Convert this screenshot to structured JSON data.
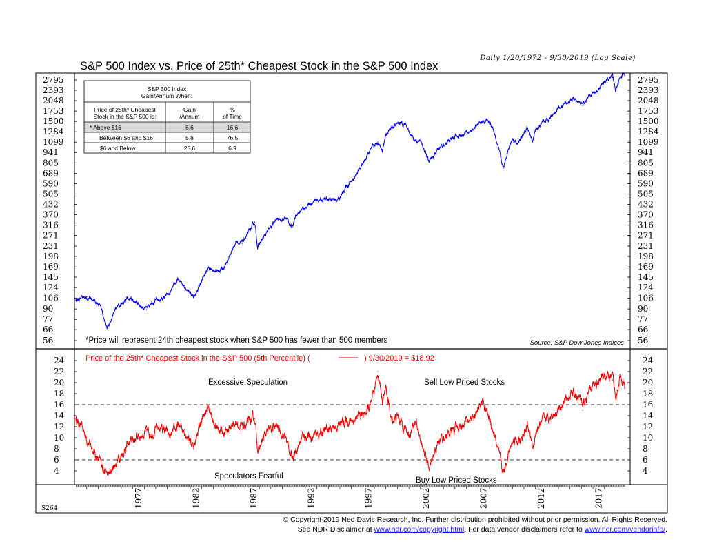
{
  "header": {
    "title": "S&P 500 Index vs. Price of 25th* Cheapest Stock in the S&P 500 Index",
    "subtitle": "Daily 1/20/1972 - 9/30/2019 (Log Scale)"
  },
  "chart_id": "S264",
  "footer": {
    "line1": "© Copyright 2019 Ned Davis Research, Inc.  Further distribution prohibited without prior permission.  All Rights Reserved.",
    "line2_prefix": "See NDR Disclaimer at ",
    "line2_link1": "www.ndr.com/copyright.html",
    "line2_middle": ". For data vendor disclaimers refer to ",
    "line2_link2": "www.ndr.com/vendorinfo/",
    "line2_suffix": "."
  },
  "stats_table": {
    "title_line1": "S&P 500 Index",
    "title_line2": "Gain/Annum When:",
    "col1_line1": "Price of 25th* Cheapest",
    "col1_line2": "Stock in the S&P 500 is:",
    "col2_line1": "Gain",
    "col2_line2": "/Annum",
    "col3_line1": "%",
    "col3_line2": "of Time",
    "rows": [
      {
        "label": "*  Above $16",
        "gain": "6.6",
        "pct": "16.6"
      },
      {
        "label": "Between $6 and  $16",
        "gain": "5.8",
        "pct": "76.5"
      },
      {
        "label": "$6 and Below",
        "gain": "25.6",
        "pct": "6.9"
      }
    ]
  },
  "colors": {
    "sp500_line": "#0000ee",
    "cheap_stock_line": "#ee0000",
    "highlight_row": "#d9d9d9"
  },
  "chart_data": [
    {
      "type": "line",
      "scale": "log",
      "y_ticks": [
        "2795",
        "2393",
        "2048",
        "1753",
        "1500",
        "1284",
        "1099",
        "941",
        "805",
        "689",
        "590",
        "505",
        "432",
        "370",
        "316",
        "271",
        "231",
        "198",
        "169",
        "145",
        "124",
        "106",
        "90",
        "77",
        "66",
        "56"
      ],
      "footnote": "*Price will represent 24th cheapest stock when S&P 500 has fewer than 500 members",
      "source": "Source: S&P Dow Jones Indices",
      "series": [
        {
          "name": "S&P 500 Index",
          "x": [
            1972.05,
            1973.0,
            1973.6,
            1974.3,
            1974.75,
            1974.95,
            1975.5,
            1976.5,
            1977.3,
            1978.2,
            1978.6,
            1979.3,
            1980.2,
            1980.9,
            1981.5,
            1982.3,
            1982.6,
            1983.5,
            1984.5,
            1985.0,
            1986.0,
            1986.5,
            1987.6,
            1987.85,
            1988.5,
            1989.5,
            1990.4,
            1990.8,
            1991.2,
            1992.0,
            1993.0,
            1994.0,
            1995.0,
            1995.5,
            1996.5,
            1997.5,
            1998.3,
            1998.7,
            1999.0,
            1999.5,
            2000.2,
            2000.7,
            2001.0,
            2001.7,
            2002.0,
            2002.75,
            2003.1,
            2003.5,
            2004.5,
            2005.5,
            2006.5,
            2007.2,
            2007.8,
            2008.3,
            2008.75,
            2008.95,
            2009.2,
            2009.5,
            2010.0,
            2010.5,
            2011.3,
            2011.75,
            2012.0,
            2013.0,
            2014.0,
            2015.4,
            2016.1,
            2016.5,
            2017.5,
            2018.0,
            2018.7,
            2018.95,
            2019.2,
            2019.5,
            2019.75
          ],
          "y": [
            103,
            108,
            104,
            90,
            67,
            70,
            92,
            105,
            100,
            89,
            101,
            103,
            112,
            139,
            128,
            108,
            118,
            165,
            160,
            170,
            250,
            240,
            330,
            230,
            270,
            345,
            350,
            305,
            375,
            415,
            460,
            465,
            470,
            560,
            680,
            930,
            1100,
            980,
            1220,
            1370,
            1480,
            1440,
            1300,
            1080,
            1150,
            820,
            860,
            990,
            1130,
            1220,
            1310,
            1480,
            1540,
            1380,
            1000,
            880,
            740,
            920,
            1150,
            1080,
            1350,
            1120,
            1300,
            1530,
            1850,
            2100,
            1900,
            2100,
            2450,
            2750,
            2900,
            2450,
            2750,
            2950,
            2980
          ]
        }
      ]
    },
    {
      "type": "line",
      "y_ticks": [
        24,
        22,
        20,
        18,
        16,
        14,
        12,
        10,
        8,
        6,
        4
      ],
      "reference_lines": [
        16,
        6
      ],
      "x_ticks": [
        "1977",
        "1982",
        "1987",
        "1992",
        "1997",
        "2002",
        "2007",
        "2012",
        "2017"
      ],
      "legend_text": "Price of the 25th* Cheapest Stock in the S&P 500 (5th Percentile) (",
      "legend_text_end": ") 9/30/2019 = $18.92",
      "annotations": [
        "Excessive Speculation",
        "Sell Low Priced Stocks",
        "Speculators Fearful",
        "Buy Low Priced Stocks"
      ],
      "series": [
        {
          "name": "Price of the 25th* Cheapest Stock in the S&P 500 (5th Percentile)",
          "x": [
            1972.05,
            1972.5,
            1973.0,
            1973.5,
            1974.0,
            1974.5,
            1974.85,
            1975.3,
            1975.8,
            1976.5,
            1977.5,
            1978.5,
            1979.5,
            1980.3,
            1980.9,
            1981.5,
            1982.3,
            1982.8,
            1983.5,
            1984.3,
            1985.0,
            1986.0,
            1986.5,
            1987.6,
            1987.9,
            1988.5,
            1989.5,
            1990.3,
            1990.8,
            1991.2,
            1991.8,
            1992.5,
            1993.5,
            1994.5,
            1995.5,
            1996.5,
            1997.2,
            1997.8,
            1998.3,
            1998.7,
            1999.0,
            1999.5,
            2000.0,
            2000.6,
            2001.0,
            2001.5,
            2002.3,
            2002.8,
            2003.1,
            2003.6,
            2004.2,
            2005.0,
            2006.0,
            2006.8,
            2007.4,
            2007.9,
            2008.4,
            2008.9,
            2009.2,
            2009.6,
            2010.2,
            2010.7,
            2011.3,
            2011.8,
            2012.3,
            2013.0,
            2013.8,
            2014.5,
            2015.2,
            2015.9,
            2016.1,
            2016.5,
            2017.2,
            2018.0,
            2018.7,
            2018.95,
            2019.3,
            2019.75
          ],
          "y": [
            13.5,
            12,
            10,
            8,
            6,
            4.5,
            3,
            4.5,
            6.5,
            8.5,
            10.5,
            11,
            12,
            10,
            12,
            11.5,
            8.5,
            12,
            15.5,
            12,
            11,
            13,
            11.5,
            13.5,
            7.5,
            10.5,
            12,
            10,
            6.5,
            8,
            10.5,
            10,
            11,
            12,
            13,
            13.5,
            14.5,
            16,
            22,
            17,
            19,
            13,
            14,
            12,
            10.5,
            13,
            8,
            4,
            6,
            9.5,
            10.5,
            11.5,
            13,
            14,
            17,
            14,
            11,
            6,
            3.5,
            7,
            10,
            9,
            12,
            8.5,
            12,
            13.5,
            15,
            16.5,
            18,
            17,
            15,
            17.5,
            20,
            21.5,
            20.5,
            17.5,
            21,
            18.92
          ]
        }
      ]
    }
  ]
}
